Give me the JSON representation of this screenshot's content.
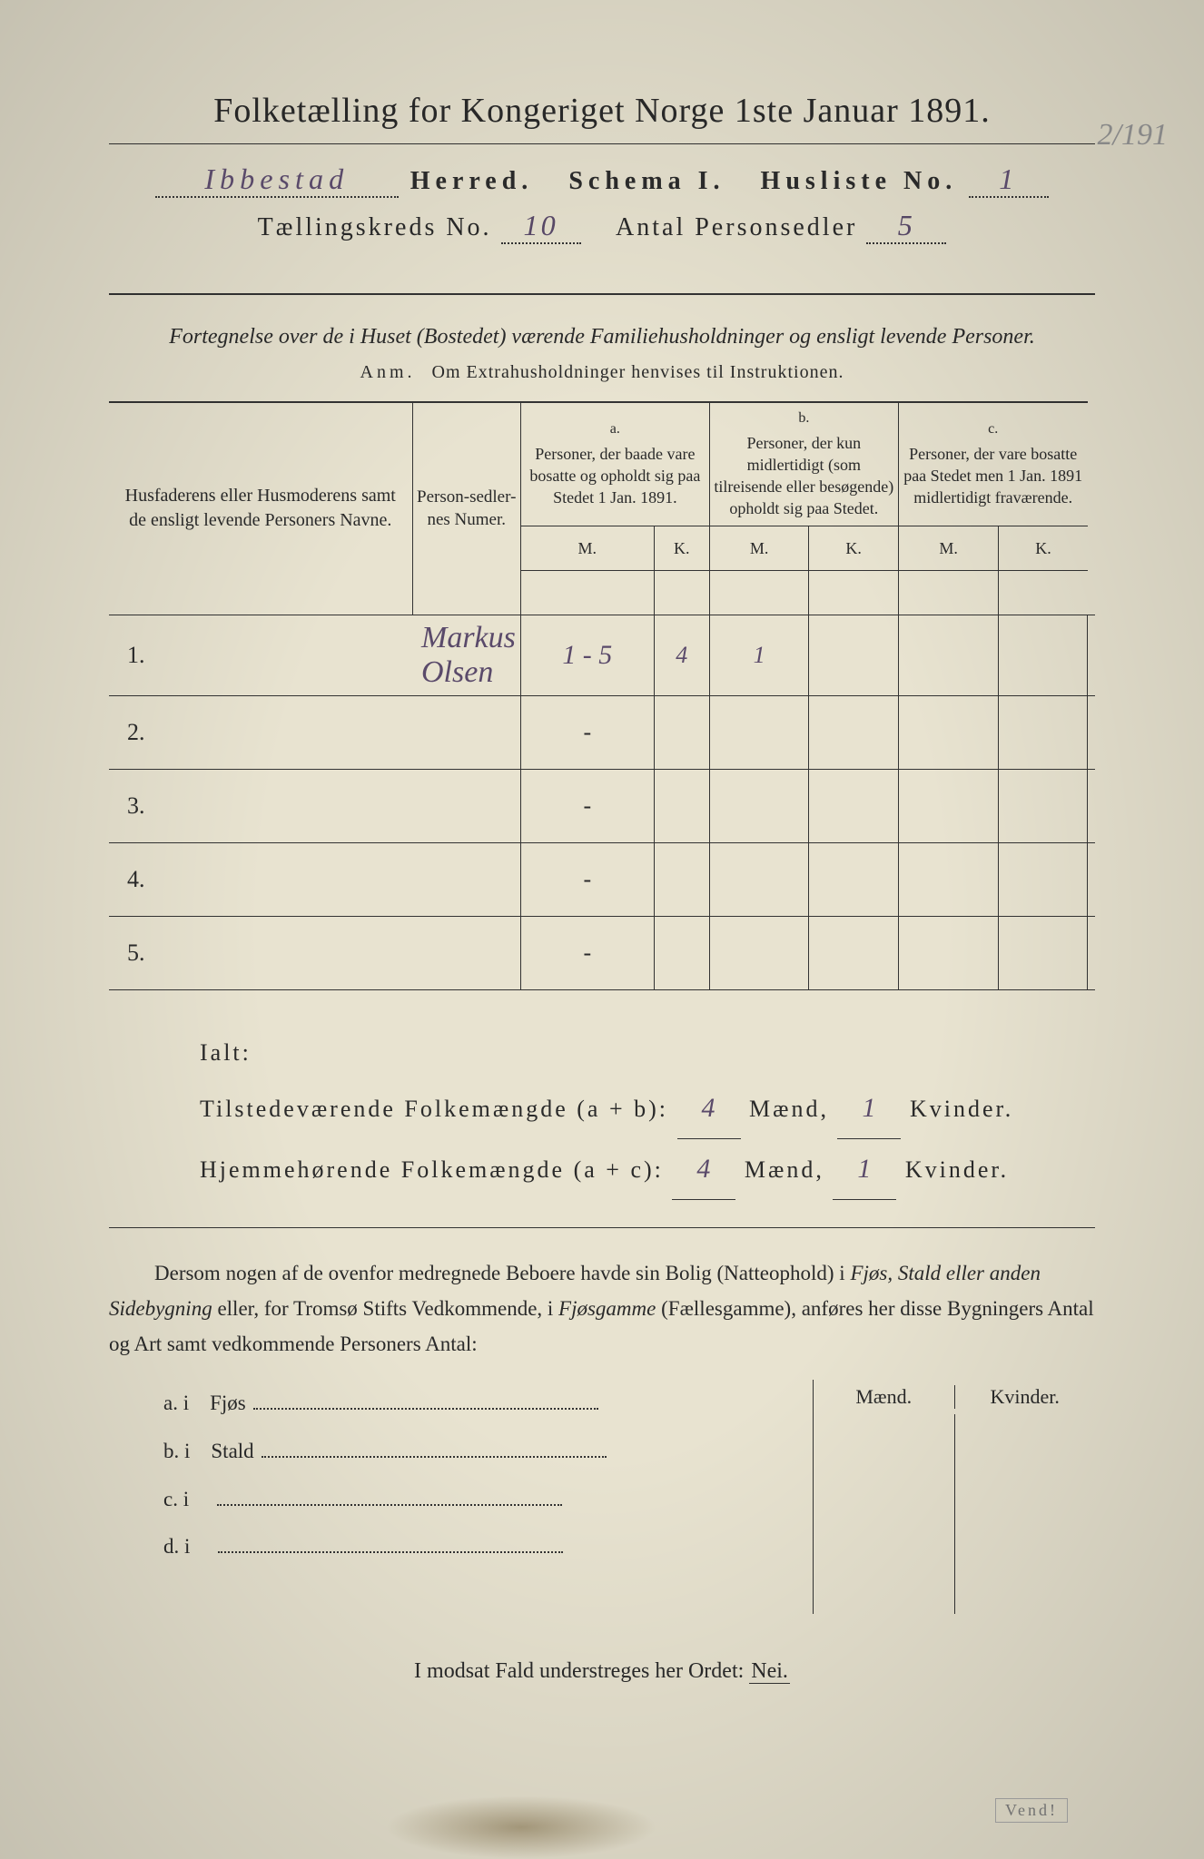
{
  "header": {
    "title": "Folketælling for Kongeriget Norge 1ste Januar 1891.",
    "herred_value": "Ibbestad",
    "herred_label": "Herred.",
    "schema_label": "Schema I.",
    "husliste_label": "Husliste No.",
    "husliste_value": "1",
    "kreds_label": "Tællingskreds No.",
    "kreds_value": "10",
    "antal_label": "Antal Personsedler",
    "antal_value": "5",
    "margin_note": "2/191"
  },
  "subtitle": "Fortegnelse over de i Huset (Bostedet) værende Familiehusholdninger og ensligt levende Personer.",
  "anm_prefix": "Anm.",
  "anm_text": "Om Extrahusholdninger henvises til Instruktionen.",
  "table": {
    "col_name": "Husfaderens eller Husmoderens samt de ensligt levende Personers Navne.",
    "col_num": "Person-sedler-nes Numer.",
    "col_a_label": "a.",
    "col_a": "Personer, der baade vare bosatte og opholdt sig paa Stedet 1 Jan. 1891.",
    "col_b_label": "b.",
    "col_b": "Personer, der kun midlertidigt (som tilreisende eller besøgende) opholdt sig paa Stedet.",
    "col_c_label": "c.",
    "col_c": "Personer, der vare bosatte paa Stedet men 1 Jan. 1891 midlertidigt fraværende.",
    "m": "M.",
    "k": "K.",
    "rows": [
      {
        "num": "1.",
        "name": "Markus Olsen",
        "sedler": "1 - 5",
        "a_m": "4",
        "a_k": "1",
        "b_m": "",
        "b_k": "",
        "c_m": "",
        "c_k": ""
      },
      {
        "num": "2.",
        "name": "",
        "sedler": "-",
        "a_m": "",
        "a_k": "",
        "b_m": "",
        "b_k": "",
        "c_m": "",
        "c_k": ""
      },
      {
        "num": "3.",
        "name": "",
        "sedler": "-",
        "a_m": "",
        "a_k": "",
        "b_m": "",
        "b_k": "",
        "c_m": "",
        "c_k": ""
      },
      {
        "num": "4.",
        "name": "",
        "sedler": "-",
        "a_m": "",
        "a_k": "",
        "b_m": "",
        "b_k": "",
        "c_m": "",
        "c_k": ""
      },
      {
        "num": "5.",
        "name": "",
        "sedler": "-",
        "a_m": "",
        "a_k": "",
        "b_m": "",
        "b_k": "",
        "c_m": "",
        "c_k": ""
      }
    ]
  },
  "totals": {
    "ialt": "Ialt:",
    "line1_label": "Tilstedeværende Folkemængde (a + b):",
    "line2_label": "Hjemmehørende Folkemængde (a + c):",
    "maend": "Mænd,",
    "kvinder": "Kvinder.",
    "v1_m": "4",
    "v1_k": "1",
    "v2_m": "4",
    "v2_k": "1"
  },
  "paragraph": {
    "text1": "Dersom nogen af de ovenfor medregnede Beboere havde sin Bolig (Natteophold) i ",
    "italic1": "Fjøs, Stald eller anden Sidebygning",
    "text2": " eller, for Tromsø Stifts Vedkommende, i ",
    "italic2": "Fjøsgamme",
    "text3": " (Fællesgamme), anføres her disse Bygningers Antal og Art samt vedkommende Personers Antal:"
  },
  "sidetable": {
    "maend": "Mænd.",
    "kvinder": "Kvinder.",
    "rows": [
      {
        "label": "a.  i",
        "name": "Fjøs"
      },
      {
        "label": "b.  i",
        "name": "Stald"
      },
      {
        "label": "c.  i",
        "name": ""
      },
      {
        "label": "d.  i",
        "name": ""
      }
    ]
  },
  "final": {
    "text": "I modsat Fald understreges her Ordet:",
    "nei": "Nei."
  },
  "stamp": "Vend!",
  "colors": {
    "paper": "#e8e3d0",
    "ink": "#2a2a2a",
    "handwriting": "#5a4a6a",
    "pencil": "#888888"
  }
}
